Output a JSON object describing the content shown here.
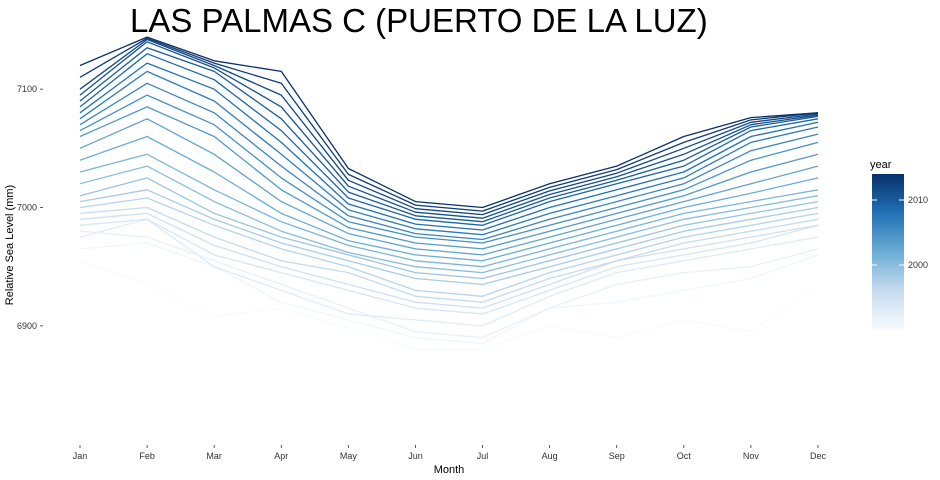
{
  "chart_data": {
    "type": "line",
    "title": "LAS PALMAS C (PUERTO DE LA LUZ)",
    "xlabel": "Month",
    "ylabel": "Relative Sea Level (mm)",
    "categories": [
      "Jan",
      "Feb",
      "Mar",
      "Apr",
      "May",
      "Jun",
      "Jul",
      "Aug",
      "Sep",
      "Oct",
      "Nov",
      "Dec"
    ],
    "ylim": [
      6812,
      7150
    ],
    "yticks": [
      6900,
      7000,
      7100
    ],
    "ytick_labels": [
      "6900",
      "7000",
      "7100"
    ],
    "grid": false,
    "legend": {
      "title": "year",
      "placement": "right",
      "ticks": [
        2000,
        2010
      ],
      "tick_labels": [
        "2000",
        "2010"
      ],
      "range": [
        1990,
        2014
      ],
      "color_low": "#f7fbff",
      "color_high": "#08306b"
    },
    "series": [
      {
        "year": 1990,
        "values": [
          6955,
          6935,
          6908,
          6915,
          6898,
          6880,
          6880,
          6900,
          6890,
          6905,
          6895,
          6935
        ]
      },
      {
        "year": 1991,
        "values": [
          6965,
          6970,
          6950,
          6920,
          6905,
          6890,
          6885,
          6915,
          6920,
          6930,
          6940,
          6960
        ]
      },
      {
        "year": 1992,
        "values": [
          6980,
          6975,
          6955,
          6935,
          6915,
          6895,
          6890,
          6915,
          6935,
          6945,
          6950,
          6965
        ]
      },
      {
        "year": 1993,
        "values": [
          6975,
          6990,
          6950,
          6930,
          6910,
          6905,
          6900,
          6925,
          6945,
          6955,
          6965,
          6975
        ]
      },
      {
        "year": 1994,
        "values": [
          6985,
          6990,
          6960,
          6945,
          6930,
          6915,
          6910,
          6930,
          6950,
          6960,
          6970,
          6985
        ]
      },
      {
        "year": 1995,
        "values": [
          6990,
          6995,
          6968,
          6950,
          6935,
          6920,
          6915,
          6935,
          6955,
          6965,
          6975,
          6985
        ]
      },
      {
        "year": 1996,
        "values": [
          6995,
          7000,
          6975,
          6955,
          6945,
          6925,
          6920,
          6940,
          6955,
          6970,
          6980,
          6990
        ]
      },
      {
        "year": 1997,
        "values": [
          7000,
          7008,
          6985,
          6965,
          6950,
          6930,
          6925,
          6945,
          6960,
          6975,
          6985,
          6995
        ]
      },
      {
        "year": 1998,
        "values": [
          7005,
          7015,
          6990,
          6970,
          6955,
          6940,
          6935,
          6950,
          6965,
          6980,
          6990,
          7000
        ]
      },
      {
        "year": 1999,
        "values": [
          7010,
          7025,
          6995,
          6975,
          6960,
          6945,
          6940,
          6955,
          6970,
          6985,
          6995,
          7005
        ]
      },
      {
        "year": 2000,
        "values": [
          7020,
          7035,
          7005,
          6980,
          6962,
          6950,
          6945,
          6960,
          6975,
          6990,
          7000,
          7010
        ]
      },
      {
        "year": 2001,
        "values": [
          7030,
          7045,
          7015,
          6988,
          6968,
          6955,
          6950,
          6965,
          6980,
          6995,
          7005,
          7015
        ]
      },
      {
        "year": 2002,
        "values": [
          7040,
          7060,
          7030,
          6995,
          6972,
          6960,
          6955,
          6970,
          6985,
          7000,
          7012,
          7025
        ]
      },
      {
        "year": 2003,
        "values": [
          7050,
          7075,
          7045,
          7005,
          6978,
          6965,
          6960,
          6975,
          6990,
          7005,
          7020,
          7035
        ]
      },
      {
        "year": 2004,
        "values": [
          7060,
          7085,
          7060,
          7015,
          6983,
          6970,
          6965,
          6980,
          6995,
          7010,
          7030,
          7045
        ]
      },
      {
        "year": 2005,
        "values": [
          7065,
          7095,
          7070,
          7025,
          6988,
          6975,
          6970,
          6985,
          7000,
          7015,
          7040,
          7055
        ]
      },
      {
        "year": 2006,
        "values": [
          7070,
          7105,
          7080,
          7035,
          6993,
          6978,
          6973,
          6990,
          7005,
          7020,
          7048,
          7062
        ]
      },
      {
        "year": 2007,
        "values": [
          7075,
          7115,
          7090,
          7045,
          6998,
          6982,
          6977,
          6995,
          7010,
          7025,
          7055,
          7068
        ]
      },
      {
        "year": 2008,
        "values": [
          7080,
          7122,
          7100,
          7055,
          7003,
          6986,
          6981,
          7000,
          7015,
          7030,
          7060,
          7072
        ]
      },
      {
        "year": 2009,
        "values": [
          7085,
          7130,
          7108,
          7065,
          7008,
          6990,
          6985,
          7005,
          7020,
          7035,
          7065,
          7075
        ]
      },
      {
        "year": 2010,
        "values": [
          7090,
          7135,
          7115,
          7075,
          7013,
          6993,
          6988,
          7008,
          7023,
          7040,
          7068,
          7077
        ]
      },
      {
        "year": 2011,
        "values": [
          7095,
          7140,
          7118,
          7085,
          7018,
          6996,
          6991,
          7011,
          7026,
          7045,
          7070,
          7078
        ]
      },
      {
        "year": 2012,
        "values": [
          7100,
          7142,
          7120,
          7095,
          7023,
          6999,
          6994,
          7014,
          7029,
          7050,
          7072,
          7079
        ]
      },
      {
        "year": 2013,
        "values": [
          7110,
          7143,
          7122,
          7105,
          7028,
          7002,
          6997,
          7017,
          7032,
          7055,
          7074,
          7080
        ]
      },
      {
        "year": 2014,
        "values": [
          7120,
          7144,
          7124,
          7115,
          7033,
          7005,
          7000,
          7020,
          7035,
          7060,
          7076,
          7080
        ]
      }
    ]
  }
}
